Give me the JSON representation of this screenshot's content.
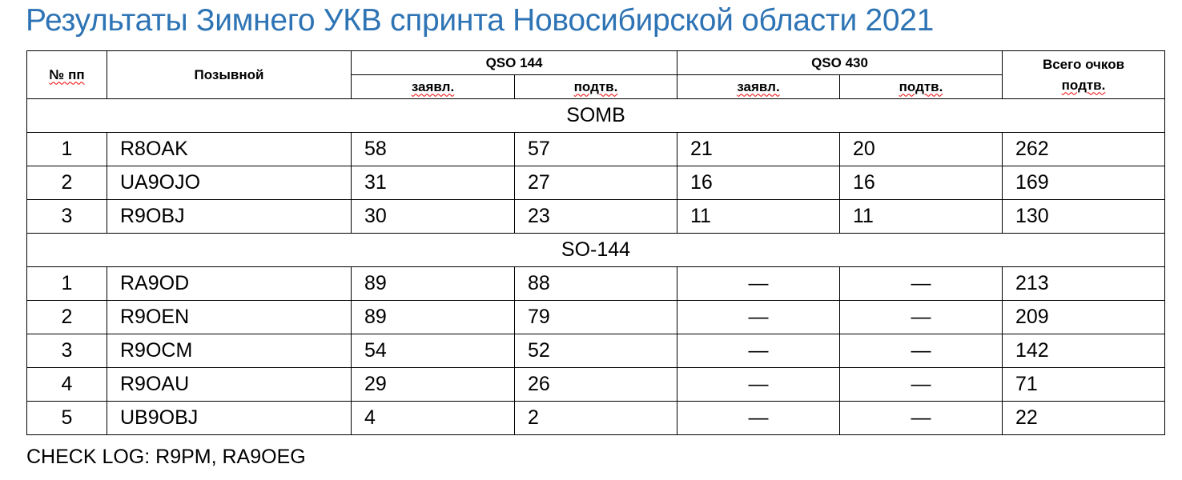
{
  "title": "Результаты Зимнего УКВ спринта Новосибирской области 2021",
  "header": {
    "num": "№ пп",
    "callsign": "Позывной",
    "qso144": "QSO 144",
    "qso430": "QSO 430",
    "total_line1": "Всего очков",
    "total_line2": "подтв.",
    "claimed": "заявл.",
    "confirmed": "подтв."
  },
  "sections": [
    {
      "name": "SOMB",
      "rows": [
        {
          "num": "1",
          "call": "R8OAK",
          "q144_claimed": "58",
          "q144_confirmed": "57",
          "q430_claimed": "21",
          "q430_confirmed": "20",
          "total": "262"
        },
        {
          "num": "2",
          "call": "UA9OJO",
          "q144_claimed": "31",
          "q144_confirmed": "27",
          "q430_claimed": "16",
          "q430_confirmed": "16",
          "total": "169"
        },
        {
          "num": "3",
          "call": "R9OBJ",
          "q144_claimed": "30",
          "q144_confirmed": "23",
          "q430_claimed": "11",
          "q430_confirmed": "11",
          "total": "130"
        }
      ]
    },
    {
      "name": "SO-144",
      "rows": [
        {
          "num": "1",
          "call": "RA9OD",
          "q144_claimed": "89",
          "q144_confirmed": "88",
          "q430_claimed": "—",
          "q430_confirmed": "—",
          "total": "213"
        },
        {
          "num": "2",
          "call": "R9OEN",
          "q144_claimed": "89",
          "q144_confirmed": "79",
          "q430_claimed": "—",
          "q430_confirmed": "—",
          "total": "209"
        },
        {
          "num": "3",
          "call": "R9OCM",
          "q144_claimed": "54",
          "q144_confirmed": "52",
          "q430_claimed": "—",
          "q430_confirmed": "—",
          "total": "142"
        },
        {
          "num": "4",
          "call": "R9OAU",
          "q144_claimed": "29",
          "q144_confirmed": "26",
          "q430_claimed": "—",
          "q430_confirmed": "—",
          "total": "71"
        },
        {
          "num": "5",
          "call": "UB9OBJ",
          "q144_claimed": "4",
          "q144_confirmed": "2",
          "q430_claimed": "—",
          "q430_confirmed": "—",
          "total": "22"
        }
      ]
    }
  ],
  "footer": "CHECK LOG: R9PM, RA9OEG",
  "colors": {
    "title": "#2e74b5",
    "spellcheck": "#e00000"
  }
}
